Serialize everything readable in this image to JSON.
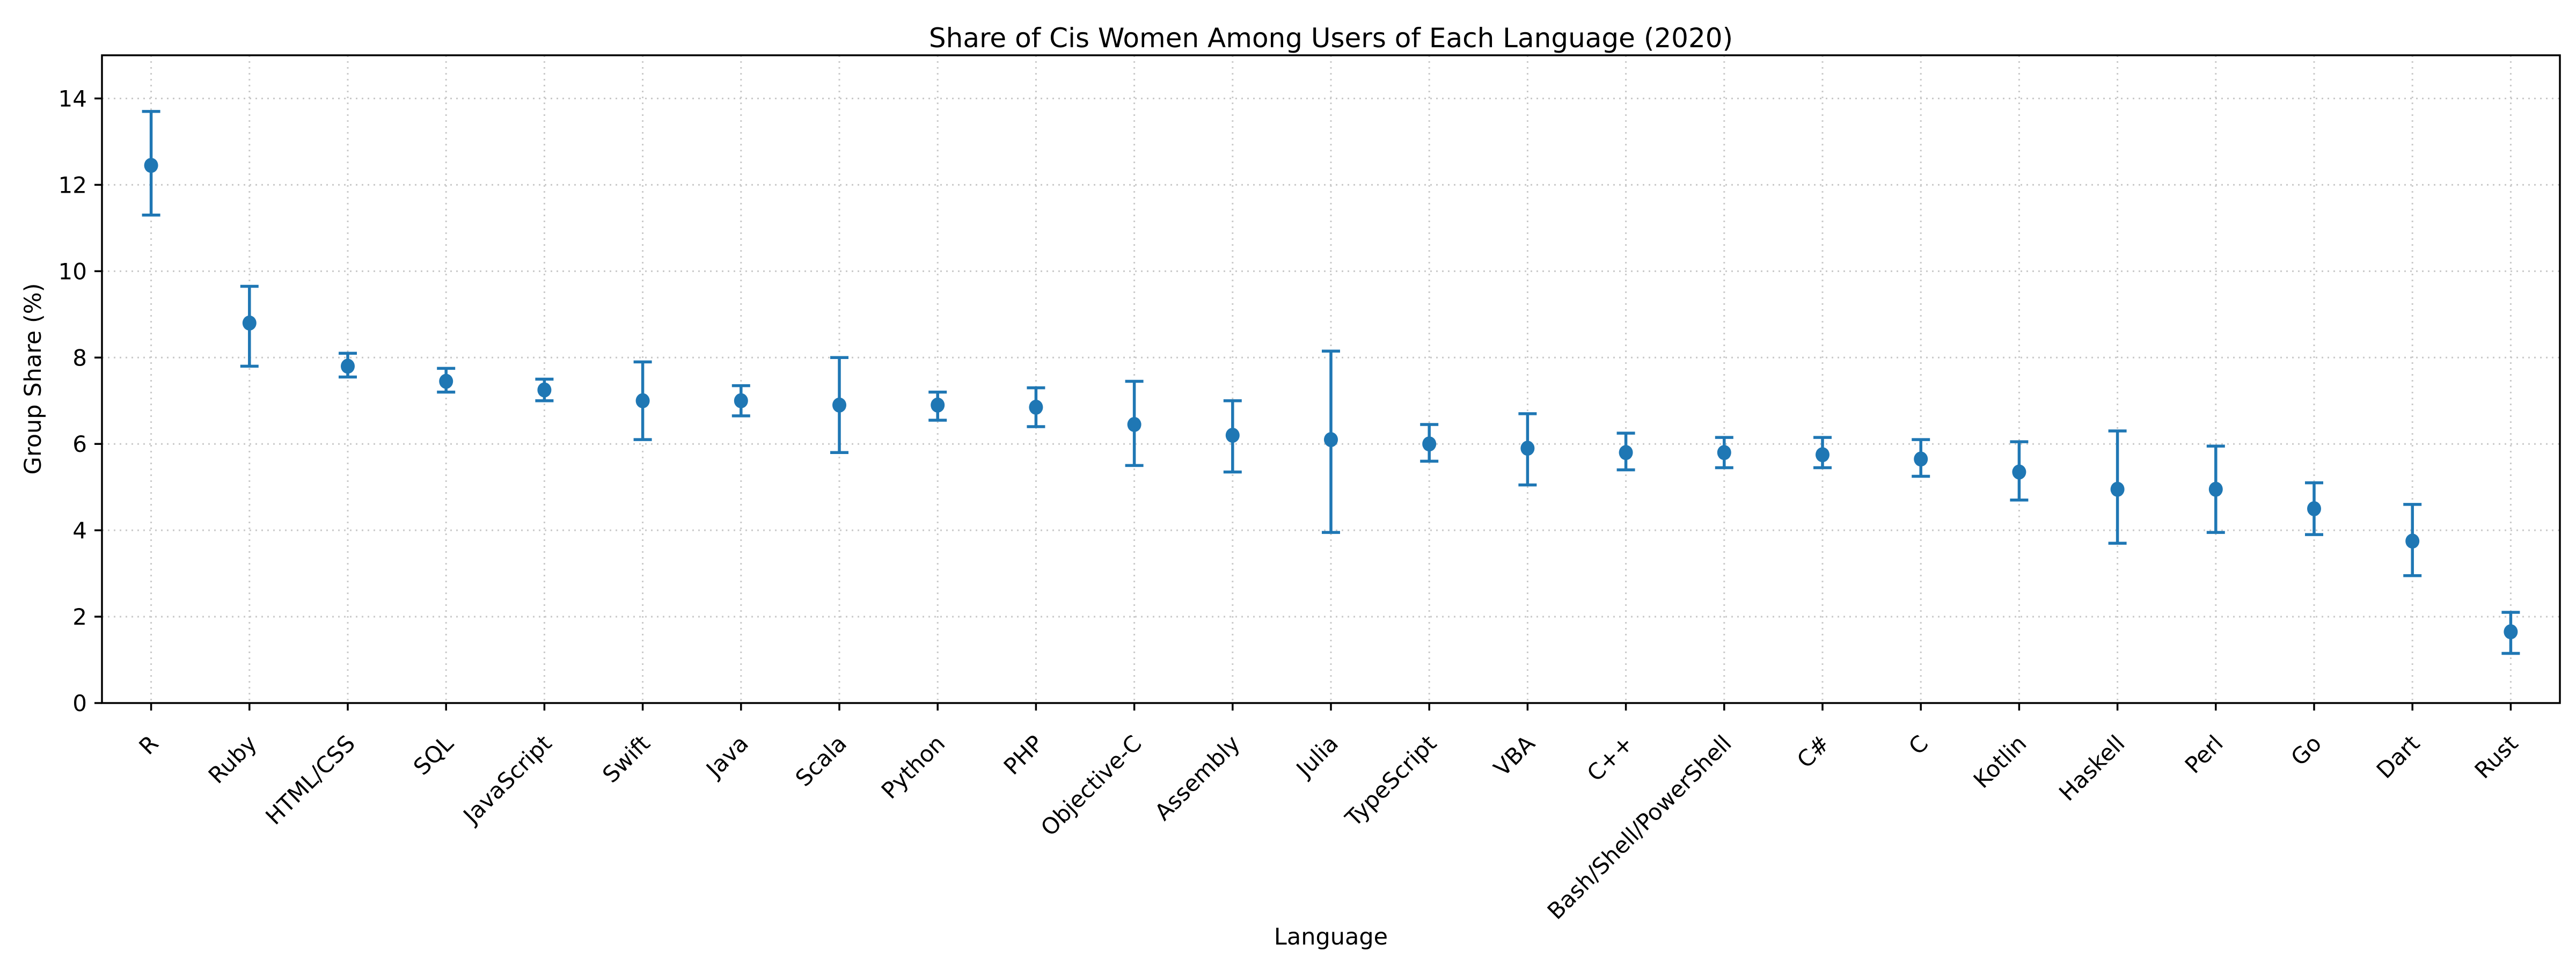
{
  "chart_data": {
    "type": "scatter",
    "subtype": "errorbar",
    "title": "Share of Cis Women Among Users of Each Language (2020)",
    "xlabel": "Language",
    "ylabel": "Group Share (%)",
    "legend": null,
    "grid": true,
    "ylim": [
      0,
      15
    ],
    "yticks": [
      0,
      2,
      4,
      6,
      8,
      10,
      12,
      14
    ],
    "categories": [
      "R",
      "Ruby",
      "HTML/CSS",
      "SQL",
      "JavaScript",
      "Swift",
      "Java",
      "Scala",
      "Python",
      "PHP",
      "Objective-C",
      "Assembly",
      "Julia",
      "TypeScript",
      "VBA",
      "C++",
      "Bash/Shell/PowerShell",
      "C#",
      "C",
      "Kotlin",
      "Haskell",
      "Perl",
      "Go",
      "Dart",
      "Rust"
    ],
    "values": [
      12.45,
      8.8,
      7.8,
      7.45,
      7.25,
      7.0,
      7.0,
      6.9,
      6.9,
      6.85,
      6.45,
      6.2,
      6.1,
      6.0,
      5.9,
      5.8,
      5.8,
      5.75,
      5.65,
      5.35,
      4.95,
      4.95,
      4.5,
      3.75,
      1.65
    ],
    "err_low": [
      11.3,
      7.8,
      7.55,
      7.2,
      7.0,
      6.1,
      6.65,
      5.8,
      6.55,
      6.4,
      5.5,
      5.35,
      3.95,
      5.6,
      5.05,
      5.4,
      5.45,
      5.45,
      5.25,
      4.7,
      3.7,
      3.95,
      3.9,
      2.95,
      1.15
    ],
    "err_high": [
      13.7,
      9.65,
      8.1,
      7.75,
      7.5,
      7.9,
      7.35,
      8.0,
      7.2,
      7.3,
      7.45,
      7.0,
      8.15,
      6.45,
      6.7,
      6.25,
      6.15,
      6.15,
      6.1,
      6.05,
      6.3,
      5.95,
      5.1,
      4.6,
      2.1
    ],
    "colors": {
      "marker": "#1f77b4",
      "errorbar": "#1f77b4",
      "grid": "#c9c9c9",
      "axis": "#000000",
      "background": "#ffffff"
    }
  }
}
